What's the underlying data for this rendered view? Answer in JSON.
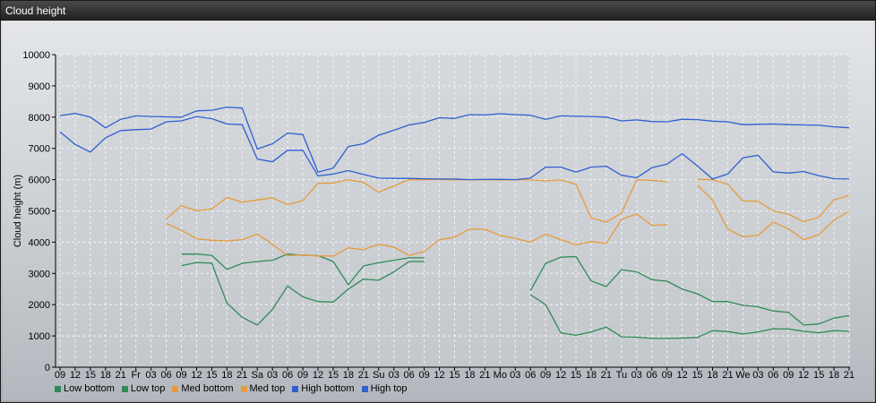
{
  "window": {
    "title": "Cloud height"
  },
  "chart_data": {
    "type": "line",
    "ylabel": "Cloud height (m)",
    "xlabel": "",
    "ylim": [
      0,
      10000
    ],
    "yticks": [
      0,
      1000,
      2000,
      3000,
      4000,
      5000,
      6000,
      7000,
      8000,
      9000,
      10000
    ],
    "grid": true,
    "legend_position": "bottom-left",
    "categories": [
      "09",
      "12",
      "15",
      "18",
      "21",
      "Fr",
      "03",
      "06",
      "09",
      "12",
      "15",
      "18",
      "21",
      "Sa",
      "03",
      "06",
      "09",
      "12",
      "15",
      "18",
      "21",
      "Su",
      "03",
      "06",
      "09",
      "12",
      "15",
      "18",
      "21",
      "Mo",
      "03",
      "06",
      "09",
      "12",
      "15",
      "18",
      "21",
      "Tu",
      "03",
      "06",
      "09",
      "12",
      "15",
      "18",
      "21",
      "We",
      "03",
      "06",
      "09",
      "12",
      "15",
      "18",
      "21"
    ],
    "series": [
      {
        "name": "Low bottom",
        "color": "#2e8b57",
        "values": [
          null,
          null,
          null,
          null,
          null,
          null,
          null,
          null,
          3250,
          3350,
          3330,
          2050,
          1600,
          1350,
          1850,
          2600,
          2250,
          2100,
          2080,
          2500,
          2820,
          2780,
          3050,
          3380,
          3380,
          null,
          null,
          null,
          null,
          null,
          null,
          2320,
          2000,
          1100,
          1020,
          1130,
          1280,
          970,
          960,
          920,
          920,
          930,
          950,
          1170,
          1140,
          1060,
          1130,
          1230,
          1220,
          1150,
          1100,
          1170,
          1150
        ]
      },
      {
        "name": "Low top",
        "color": "#2e8b57",
        "values": [
          null,
          null,
          null,
          null,
          null,
          null,
          null,
          null,
          3620,
          3620,
          3580,
          3130,
          3320,
          3380,
          3420,
          3620,
          3580,
          3570,
          3380,
          2640,
          3240,
          3340,
          3420,
          3500,
          3500,
          null,
          null,
          null,
          null,
          null,
          null,
          2450,
          3320,
          3520,
          3540,
          2760,
          2580,
          3120,
          3050,
          2800,
          2750,
          2500,
          2350,
          2100,
          2100,
          1980,
          1930,
          1800,
          1750,
          1350,
          1380,
          1570,
          1650
        ]
      },
      {
        "name": "Med bottom",
        "color": "#e89a3c",
        "values": [
          null,
          null,
          null,
          null,
          null,
          null,
          null,
          4600,
          4380,
          4110,
          4060,
          4040,
          4080,
          4260,
          3930,
          3570,
          3590,
          3560,
          3560,
          3820,
          3760,
          3930,
          3840,
          3580,
          3700,
          4080,
          4160,
          4420,
          4410,
          4220,
          4120,
          4000,
          4260,
          4080,
          3920,
          4020,
          3960,
          4730,
          4900,
          4540,
          4560,
          null,
          5830,
          5340,
          4420,
          4170,
          4220,
          4640,
          4430,
          4080,
          4240,
          4700,
          5000
        ]
      },
      {
        "name": "Med top",
        "color": "#e89a3c",
        "values": [
          null,
          null,
          null,
          null,
          null,
          null,
          null,
          4750,
          5170,
          5000,
          5070,
          5430,
          5280,
          5350,
          5420,
          5200,
          5330,
          5880,
          5890,
          6000,
          5910,
          5600,
          5800,
          6000,
          6000,
          6010,
          5990,
          6000,
          6000,
          5990,
          6000,
          5990,
          5960,
          5990,
          5850,
          4780,
          4640,
          4930,
          5990,
          5980,
          5930,
          null,
          6010,
          6000,
          5850,
          5320,
          5310,
          5000,
          4900,
          4650,
          4800,
          5350,
          5500
        ]
      },
      {
        "name": "High bottom",
        "color": "#2f5fd0",
        "values": [
          7530,
          7130,
          6880,
          7340,
          7570,
          7600,
          7620,
          7850,
          7880,
          8020,
          7950,
          7780,
          7760,
          6660,
          6570,
          6940,
          6940,
          6120,
          6180,
          6290,
          6170,
          6050,
          6040,
          6040,
          6030,
          6020,
          6020,
          6000,
          6010,
          6010,
          6000,
          6050,
          6400,
          6400,
          6240,
          6400,
          6430,
          6140,
          6060,
          6380,
          6500,
          6830,
          6440,
          6020,
          6180,
          6700,
          6780,
          6250,
          6210,
          6260,
          6130,
          6030,
          6020
        ]
      },
      {
        "name": "High top",
        "color": "#2f5fd0",
        "values": [
          8050,
          8120,
          8000,
          7660,
          7930,
          8040,
          8020,
          8010,
          8000,
          8200,
          8220,
          8320,
          8290,
          6980,
          7150,
          7490,
          7440,
          6240,
          6370,
          7060,
          7150,
          7420,
          7580,
          7750,
          7830,
          7980,
          7960,
          8080,
          8070,
          8110,
          8080,
          8060,
          7930,
          8040,
          8030,
          8020,
          8000,
          7880,
          7910,
          7860,
          7850,
          7930,
          7920,
          7870,
          7850,
          7760,
          7770,
          7780,
          7760,
          7750,
          7740,
          7690,
          7660
        ]
      }
    ]
  }
}
